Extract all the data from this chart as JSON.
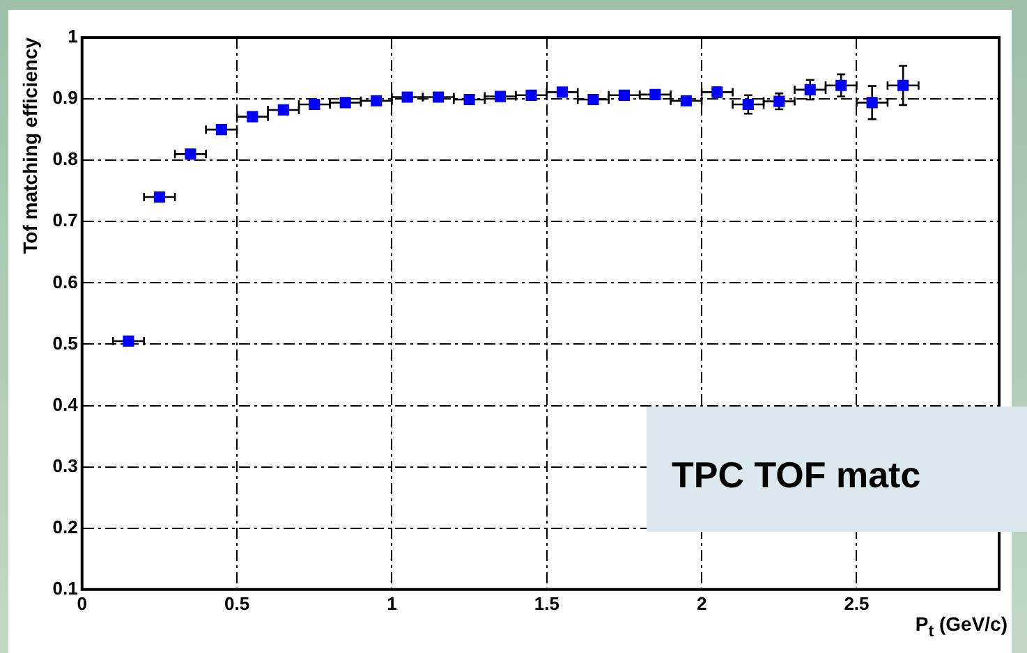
{
  "chart_data": {
    "type": "scatter",
    "xlabel": "P$_{t}$  (GeV/c)",
    "ylabel": "Tof matching efficiency",
    "x": [
      0.15,
      0.25,
      0.35,
      0.45,
      0.55,
      0.65,
      0.75,
      0.85,
      0.95,
      1.05,
      1.15,
      1.25,
      1.35,
      1.45,
      1.55,
      1.65,
      1.75,
      1.85,
      1.95,
      2.05,
      2.15,
      2.25,
      2.35,
      2.45,
      2.55,
      2.65
    ],
    "series": [
      {
        "color": "#0000ff",
        "values": [
          0.505,
          0.74,
          0.81,
          0.85,
          0.871,
          0.882,
          0.891,
          0.894,
          0.897,
          0.903,
          0.903,
          0.899,
          0.904,
          0.906,
          0.911,
          0.899,
          0.906,
          0.907,
          0.897,
          0.911,
          0.891,
          0.896,
          0.915,
          0.922,
          0.894,
          0.922
        ],
        "errors": [
          null,
          null,
          null,
          null,
          null,
          null,
          null,
          null,
          null,
          null,
          null,
          null,
          null,
          null,
          null,
          null,
          null,
          null,
          null,
          0.008,
          0.015,
          0.013,
          0.016,
          0.018,
          0.027,
          0.032
        ],
        "xerrors": [
          0.05,
          0.05,
          0.05,
          0.05,
          0.05,
          0.05,
          0.05,
          0.05,
          0.05,
          0.05,
          0.05,
          0.05,
          0.05,
          0.05,
          0.05,
          0.05,
          0.05,
          0.05,
          0.05,
          0.05,
          0.05,
          0.05,
          0.05,
          0.05,
          0.05,
          0.05
        ]
      }
    ],
    "xlim": [
      0,
      2.96
    ],
    "xticks": [
      0,
      0.5,
      1,
      1.5,
      2,
      2.5
    ],
    "ylim": [
      0.1,
      1
    ],
    "yticks": [
      0.1,
      0.2,
      0.3,
      0.4,
      0.5,
      0.6,
      0.7,
      0.8,
      0.9,
      1
    ],
    "grid": true,
    "marker": "square",
    "legend": false,
    "annotations": [
      "TPC TOF matc"
    ]
  }
}
